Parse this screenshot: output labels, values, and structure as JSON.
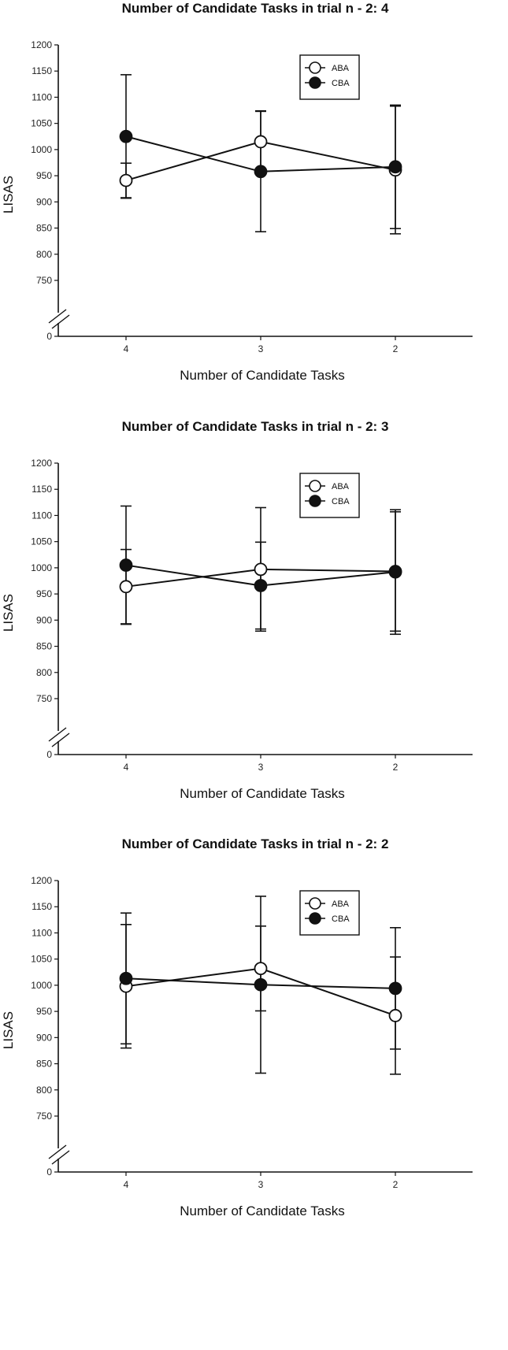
{
  "chart_data": [
    {
      "type": "line",
      "title": "Number of Candidate Tasks in trial n - 2: 4",
      "xlabel": "Number of Candidate Tasks",
      "ylabel": "LISAS",
      "categories": [
        "4",
        "3",
        "2"
      ],
      "yticks": [
        "0",
        "750",
        "800",
        "850",
        "900",
        "950",
        "1000",
        "1050",
        "1100",
        "1150",
        "1200"
      ],
      "ylim": [
        750,
        1200
      ],
      "axis_break": true,
      "grid": false,
      "legend_position": "top-right",
      "series": [
        {
          "name": "ABA",
          "marker": "open-circle",
          "color": "#ffffff",
          "values": [
            941,
            1015,
            961
          ],
          "error": [
            33,
            59,
            122
          ]
        },
        {
          "name": "CBA",
          "marker": "filled-circle",
          "color": "#111111",
          "values": [
            1025,
            958,
            967
          ],
          "error": [
            118,
            115,
            118
          ]
        }
      ]
    },
    {
      "type": "line",
      "title": "Number of Candidate Tasks in trial n - 2: 3",
      "xlabel": "Number of Candidate Tasks",
      "ylabel": "LISAS",
      "categories": [
        "4",
        "3",
        "2"
      ],
      "yticks": [
        "0",
        "750",
        "800",
        "850",
        "900",
        "950",
        "1000",
        "1050",
        "1100",
        "1150",
        "1200"
      ],
      "ylim": [
        750,
        1200
      ],
      "axis_break": true,
      "grid": false,
      "legend_position": "top-right",
      "series": [
        {
          "name": "ABA",
          "marker": "open-circle",
          "color": "#ffffff",
          "values": [
            964,
            997,
            993
          ],
          "error": [
            71,
            118,
            114
          ]
        },
        {
          "name": "CBA",
          "marker": "filled-circle",
          "color": "#111111",
          "values": [
            1005,
            966,
            992
          ],
          "error": [
            113,
            83,
            119
          ]
        }
      ]
    },
    {
      "type": "line",
      "title": "Number of Candidate Tasks in trial n - 2: 2",
      "xlabel": "Number of Candidate Tasks",
      "ylabel": "LISAS",
      "categories": [
        "4",
        "3",
        "2"
      ],
      "yticks": [
        "0",
        "750",
        "800",
        "850",
        "900",
        "950",
        "1000",
        "1050",
        "1100",
        "1150",
        "1200"
      ],
      "ylim": [
        750,
        1200
      ],
      "axis_break": true,
      "grid": false,
      "legend_position": "top-right",
      "series": [
        {
          "name": "ABA",
          "marker": "open-circle",
          "color": "#ffffff",
          "values": [
            998,
            1032,
            942
          ],
          "error": [
            118,
            81,
            112
          ]
        },
        {
          "name": "CBA",
          "marker": "filled-circle",
          "color": "#111111",
          "values": [
            1013,
            1001,
            994
          ],
          "error": [
            125,
            169,
            116
          ]
        }
      ]
    }
  ]
}
